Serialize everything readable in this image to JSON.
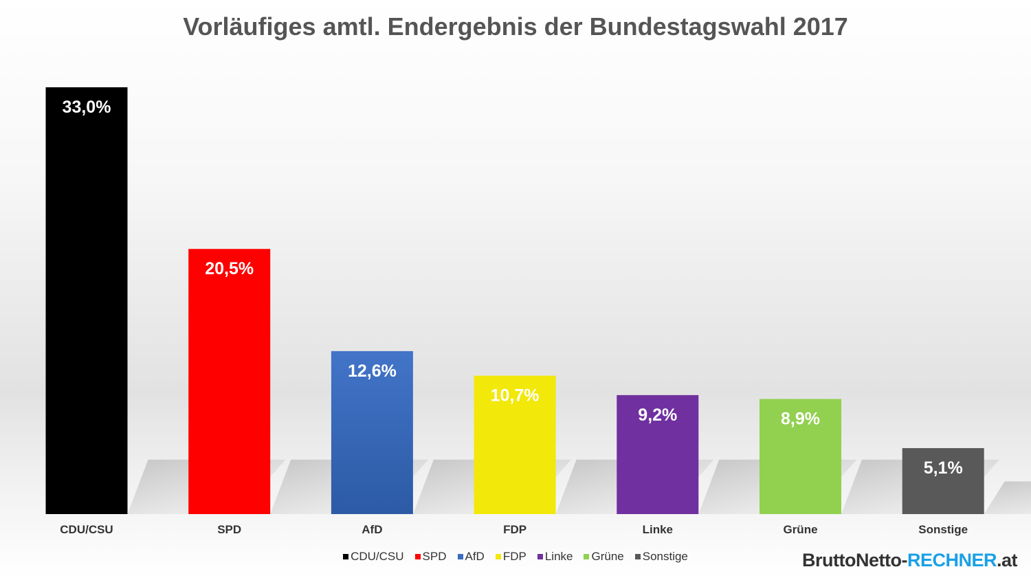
{
  "title": "Vorläufiges amtl. Endergebnis der Bundestagswahl 2017",
  "chart_data": {
    "type": "bar",
    "title": "Vorläufiges amtl. Endergebnis der Bundestagswahl 2017",
    "xlabel": "",
    "ylabel": "",
    "categories": [
      "CDU/CSU",
      "SPD",
      "AfD",
      "FDP",
      "Linke",
      "Grüne",
      "Sonstige"
    ],
    "values": [
      33.0,
      20.5,
      12.6,
      10.7,
      9.2,
      8.9,
      5.1
    ],
    "data_labels": [
      "33,0%",
      "20,5%",
      "12,6%",
      "10,7%",
      "9,2%",
      "8,9%",
      "5,1%"
    ],
    "colors": [
      "#000000",
      "#ff0000",
      "#3a6bbf",
      "#f2e80a",
      "#7030a0",
      "#92d050",
      "#595959"
    ],
    "ylim": [
      0,
      33
    ],
    "grid": false,
    "legend_position": "bottom"
  },
  "brand": {
    "part1": "BruttoNetto-",
    "part2": "RECHNER",
    "part3": ".at"
  }
}
